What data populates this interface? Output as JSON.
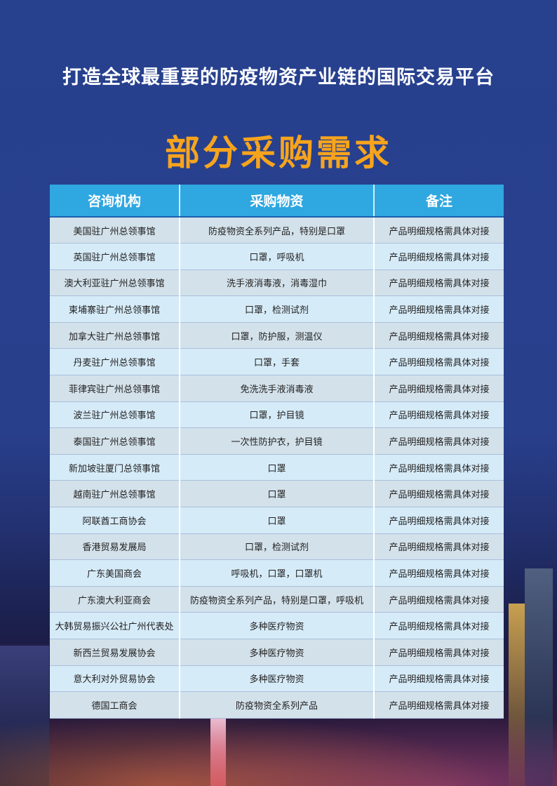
{
  "subtitle": "打造全球最重要的防疫物资产业链的国际交易平台",
  "title": "部分采购需求",
  "table": {
    "headers": [
      "咨询机构",
      "采购物资",
      "备注"
    ],
    "rows": [
      [
        "美国驻广州总领事馆",
        "防疫物资全系列产品，特别是口罩",
        "产品明细规格需具体对接"
      ],
      [
        "英国驻广州总领事馆",
        "口罩，呼吸机",
        "产品明细规格需具体对接"
      ],
      [
        "澳大利亚驻广州总领事馆",
        "洗手液消毒液，消毒湿巾",
        "产品明细规格需具体对接"
      ],
      [
        "柬埔寨驻广州总领事馆",
        "口罩，检测试剂",
        "产品明细规格需具体对接"
      ],
      [
        "加拿大驻广州总领事馆",
        "口罩，防护服，测温仪",
        "产品明细规格需具体对接"
      ],
      [
        "丹麦驻广州总领事馆",
        "口罩，手套",
        "产品明细规格需具体对接"
      ],
      [
        "菲律宾驻广州总领事馆",
        "免洗洗手液消毒液",
        "产品明细规格需具体对接"
      ],
      [
        "波兰驻广州总领事馆",
        "口罩，护目镜",
        "产品明细规格需具体对接"
      ],
      [
        "泰国驻广州总领事馆",
        "一次性防护衣，护目镜",
        "产品明细规格需具体对接"
      ],
      [
        "新加坡驻厦门总领事馆",
        "口罩",
        "产品明细规格需具体对接"
      ],
      [
        "越南驻广州总领事馆",
        "口罩",
        "产品明细规格需具体对接"
      ],
      [
        "阿联酋工商协会",
        "口罩",
        "产品明细规格需具体对接"
      ],
      [
        "香港贸易发展局",
        "口罩，检测试剂",
        "产品明细规格需具体对接"
      ],
      [
        "广东美国商会",
        "呼吸机，口罩，口罩机",
        "产品明细规格需具体对接"
      ],
      [
        "广东澳大利亚商会",
        "防疫物资全系列产品，特别是口罩，呼吸机",
        "产品明细规格需具体对接"
      ],
      [
        "大韩贸易振兴公社广州代表处",
        "多种医疗物资",
        "产品明细规格需具体对接"
      ],
      [
        "新西兰贸易发展协会",
        "多种医疗物资",
        "产品明细规格需具体对接"
      ],
      [
        "意大利对外贸易协会",
        "多种医疗物资",
        "产品明细规格需具体对接"
      ],
      [
        "德国工商会",
        "防疫物资全系列产品",
        "产品明细规格需具体对接"
      ]
    ]
  },
  "colors": {
    "background": "#27418f",
    "title": "#f7a41d",
    "header": "#2fa7e0"
  }
}
